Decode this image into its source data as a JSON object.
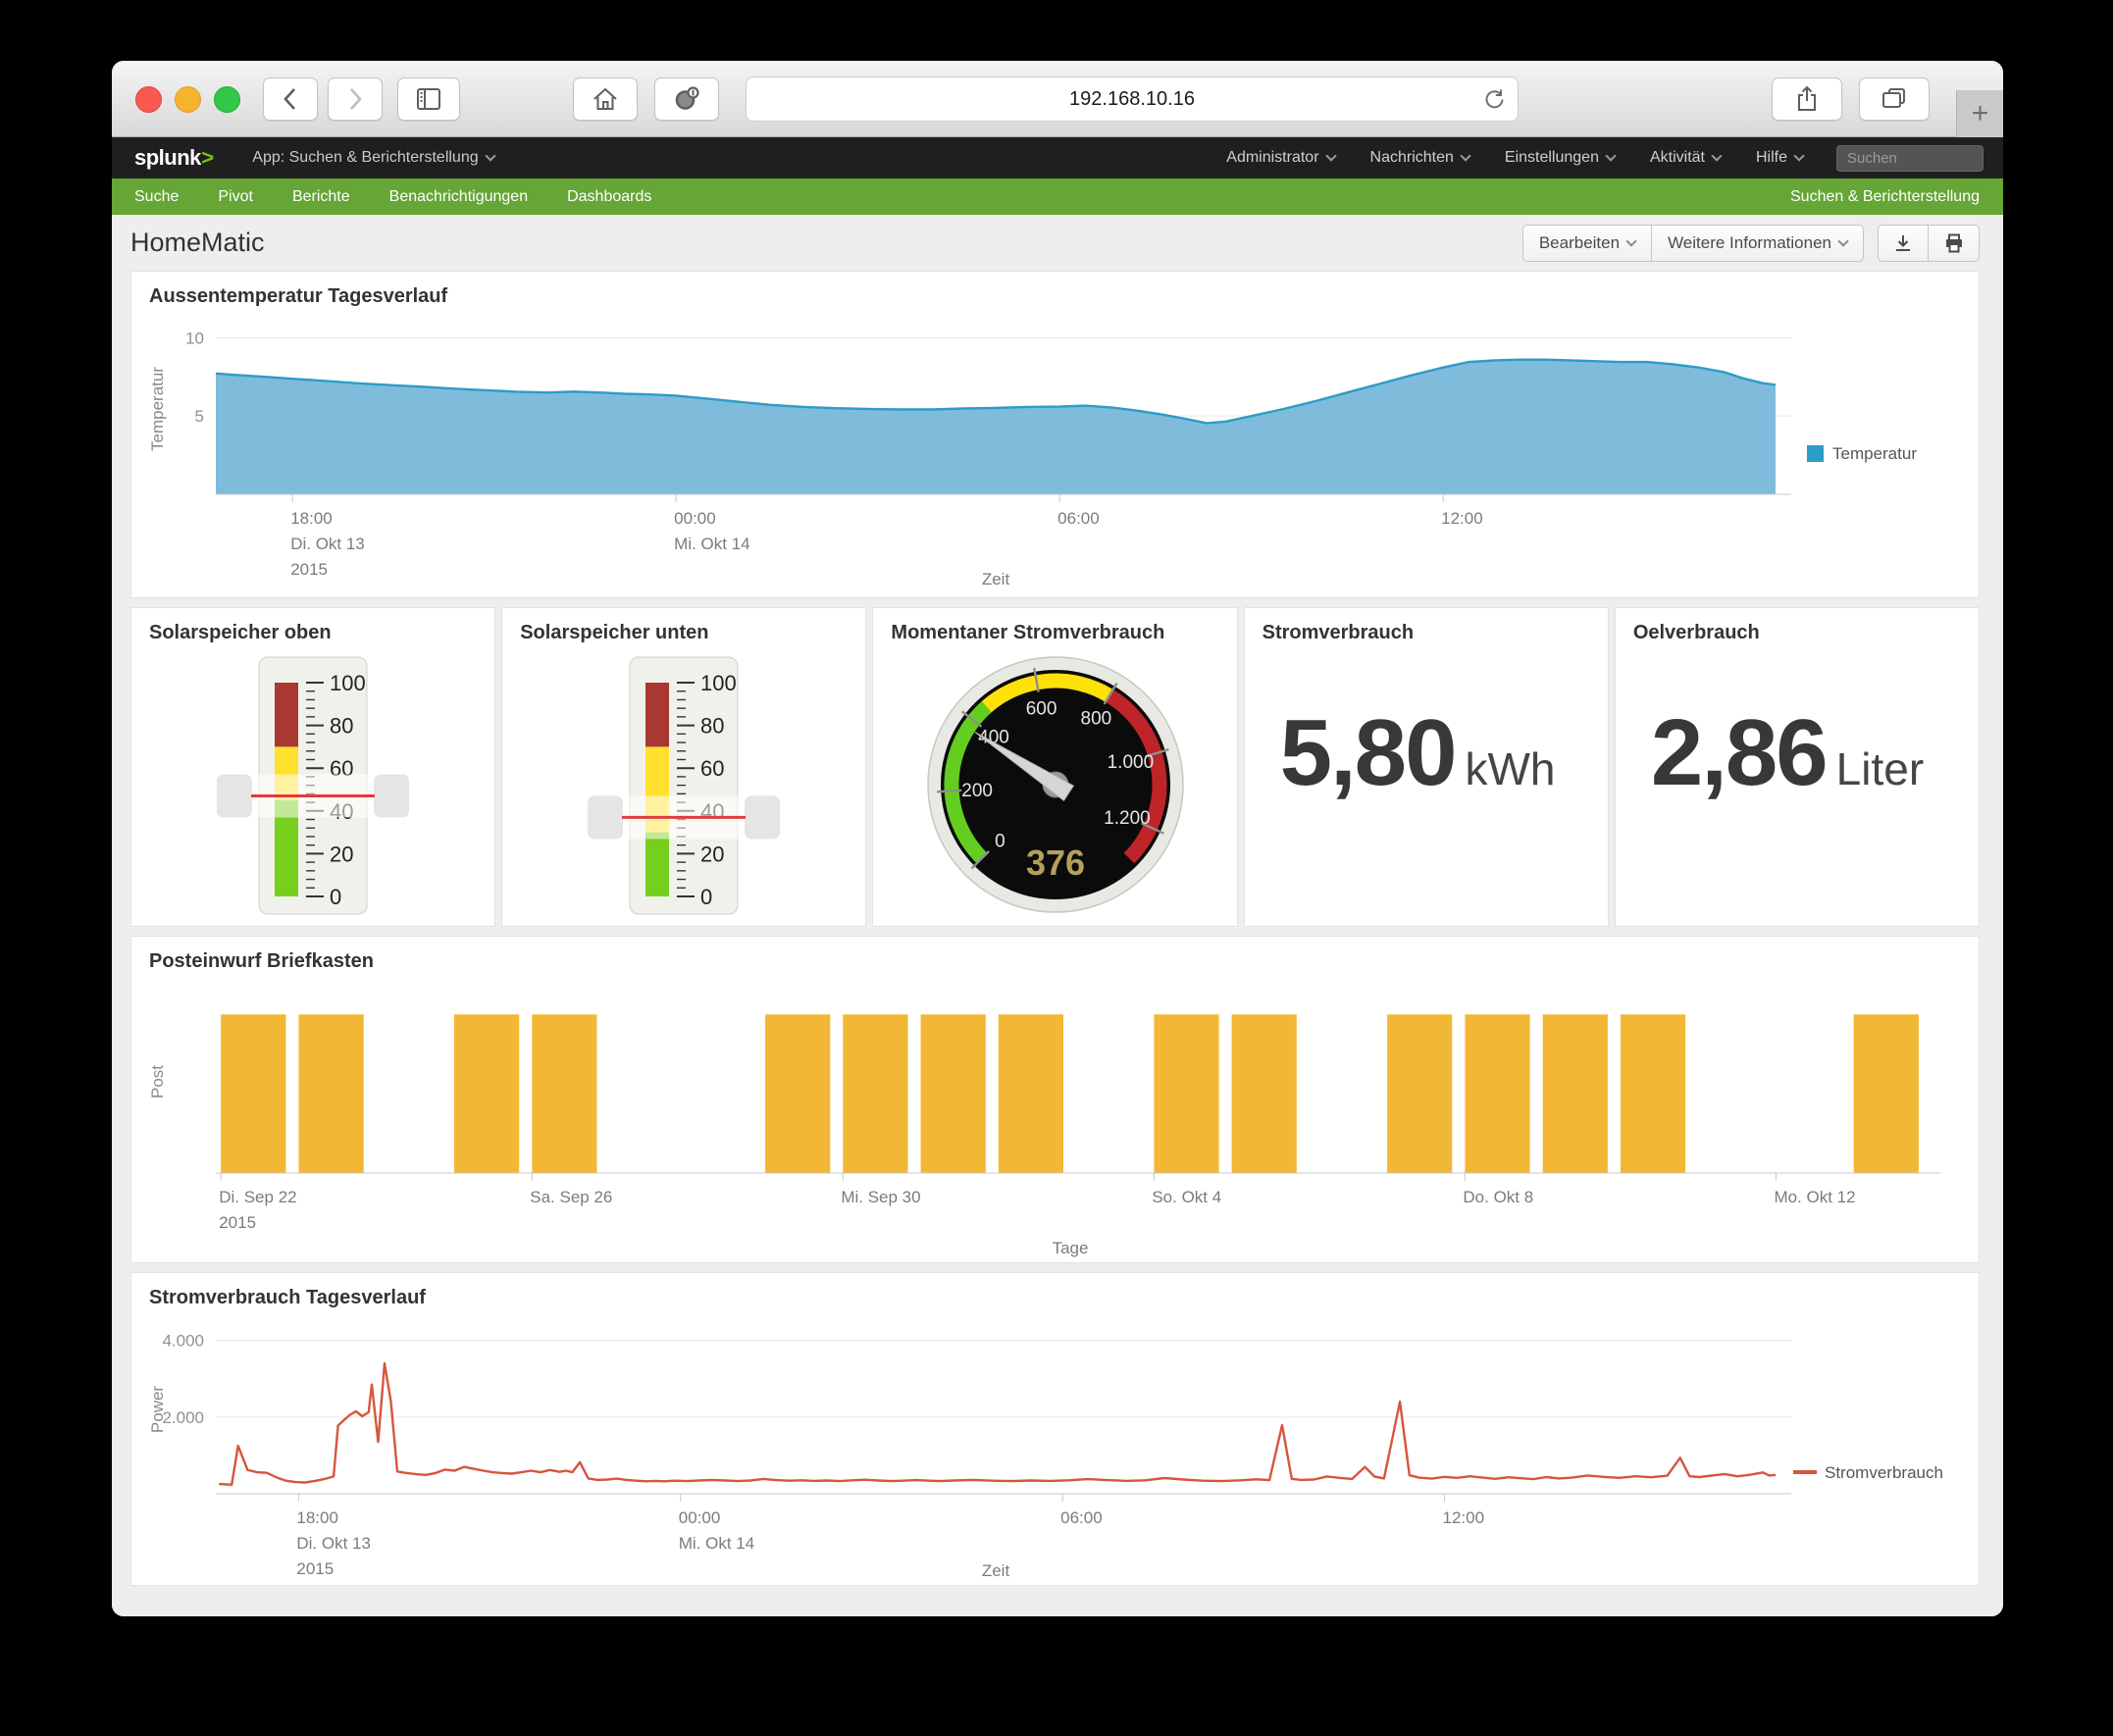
{
  "browser": {
    "url": "192.168.10.16",
    "new_tab": "+"
  },
  "splunk_bar": {
    "logo_text": "splunk",
    "logo_caret": ">",
    "app_menu_label": "App: Suchen & Berichterstellung",
    "menus": [
      "Administrator",
      "Nachrichten",
      "Einstellungen",
      "Aktivität",
      "Hilfe"
    ],
    "search_placeholder": "Suchen"
  },
  "nav_bar": {
    "items": [
      "Suche",
      "Pivot",
      "Berichte",
      "Benachrichtigungen",
      "Dashboards"
    ],
    "app_label": "Suchen & Berichterstellung"
  },
  "page": {
    "title": "HomeMatic",
    "edit_label": "Bearbeiten",
    "more_info_label": "Weitere Informationen"
  },
  "chart_data": [
    {
      "id": "temp_area",
      "type": "area",
      "title": "Aussentemperatur Tagesverlauf",
      "xlabel": "Zeit",
      "ylabel": "Temperatur",
      "color": "#2d9cc6",
      "fill": "#7fbcdc",
      "ylim": [
        0,
        10.9
      ],
      "yticks": [
        {
          "v": 5,
          "label": "5"
        },
        {
          "v": 10,
          "label": "10"
        }
      ],
      "x_range_hours": [
        16.8,
        41.2
      ],
      "xticks": [
        {
          "h": 18,
          "lines": [
            "18:00",
            "Di. Okt 13",
            "2015"
          ]
        },
        {
          "h": 24,
          "lines": [
            "00:00",
            "Mi. Okt 14"
          ]
        },
        {
          "h": 30,
          "lines": [
            "06:00"
          ]
        },
        {
          "h": 36,
          "lines": [
            "12:00"
          ]
        }
      ],
      "legend": [
        {
          "label": "Temperatur",
          "color": "#2d9cc6"
        }
      ],
      "points": [
        [
          16.8,
          7.72
        ],
        [
          17.2,
          7.6
        ],
        [
          17.6,
          7.5
        ],
        [
          18,
          7.38
        ],
        [
          18.5,
          7.25
        ],
        [
          19,
          7.1
        ],
        [
          19.5,
          6.98
        ],
        [
          20,
          6.88
        ],
        [
          20.5,
          6.75
        ],
        [
          21,
          6.65
        ],
        [
          21.5,
          6.55
        ],
        [
          22,
          6.5
        ],
        [
          22.4,
          6.56
        ],
        [
          22.8,
          6.5
        ],
        [
          23.2,
          6.42
        ],
        [
          23.6,
          6.38
        ],
        [
          24,
          6.3
        ],
        [
          24.5,
          6.1
        ],
        [
          25,
          5.9
        ],
        [
          25.5,
          5.7
        ],
        [
          26,
          5.58
        ],
        [
          26.5,
          5.5
        ],
        [
          27,
          5.45
        ],
        [
          27.5,
          5.42
        ],
        [
          28,
          5.42
        ],
        [
          28.5,
          5.48
        ],
        [
          29,
          5.52
        ],
        [
          29.5,
          5.58
        ],
        [
          30,
          5.6
        ],
        [
          30.4,
          5.66
        ],
        [
          30.8,
          5.55
        ],
        [
          31.2,
          5.35
        ],
        [
          31.6,
          5.1
        ],
        [
          32,
          4.8
        ],
        [
          32.3,
          4.55
        ],
        [
          32.6,
          4.65
        ],
        [
          33,
          5.0
        ],
        [
          33.5,
          5.45
        ],
        [
          34,
          5.95
        ],
        [
          34.5,
          6.5
        ],
        [
          35,
          7.05
        ],
        [
          35.5,
          7.6
        ],
        [
          36,
          8.1
        ],
        [
          36.4,
          8.45
        ],
        [
          36.8,
          8.55
        ],
        [
          37.2,
          8.6
        ],
        [
          37.6,
          8.6
        ],
        [
          38,
          8.55
        ],
        [
          38.4,
          8.5
        ],
        [
          38.8,
          8.45
        ],
        [
          39.2,
          8.45
        ],
        [
          39.6,
          8.3
        ],
        [
          40,
          8.1
        ],
        [
          40.4,
          7.8
        ],
        [
          40.7,
          7.4
        ],
        [
          41,
          7.1
        ],
        [
          41.2,
          7.0
        ]
      ]
    },
    {
      "id": "gauge_oben",
      "type": "filler_gauge",
      "title": "Solarspeicher oben",
      "min": 0,
      "max": 100,
      "value": 47,
      "major_tick_step": 20,
      "minor_tick_step": 4,
      "ranges": [
        {
          "from": 0,
          "to": 45,
          "color": "#76cf1c"
        },
        {
          "from": 45,
          "to": 70,
          "color": "#ffe12e"
        },
        {
          "from": 70,
          "to": 100,
          "color": "#a93732"
        }
      ],
      "marker_color": "#e23b40"
    },
    {
      "id": "gauge_unten",
      "type": "filler_gauge",
      "title": "Solarspeicher unten",
      "min": 0,
      "max": 100,
      "value": 37,
      "major_tick_step": 20,
      "minor_tick_step": 4,
      "ranges": [
        {
          "from": 0,
          "to": 30,
          "color": "#76cf1c"
        },
        {
          "from": 30,
          "to": 70,
          "color": "#ffe12e"
        },
        {
          "from": 70,
          "to": 100,
          "color": "#a93732"
        }
      ],
      "marker_color": "#e23b40"
    },
    {
      "id": "gauge_radial",
      "type": "radial_gauge",
      "title": "Momentaner Stromverbrauch",
      "min": 0,
      "max": 1300,
      "value": 376,
      "value_label": "376",
      "value_color": "#b3a05c",
      "ranges": [
        {
          "from": 0,
          "to": 450,
          "color": "#63ce20"
        },
        {
          "from": 450,
          "to": 800,
          "color": "#ffe10a"
        },
        {
          "from": 800,
          "to": 1300,
          "color": "#bf2428"
        }
      ],
      "ticks": [
        {
          "v": 0,
          "label": "0"
        },
        {
          "v": 200,
          "label": "200"
        },
        {
          "v": 400,
          "label": "400"
        },
        {
          "v": 600,
          "label": "600"
        },
        {
          "v": 800,
          "label": "800"
        },
        {
          "v": 1000,
          "label": "1.000"
        },
        {
          "v": 1200,
          "label": "1.200"
        }
      ]
    },
    {
      "id": "single_strom",
      "type": "single_value",
      "title": "Stromverbrauch",
      "value": "5,80",
      "unit": "kWh"
    },
    {
      "id": "single_oel",
      "type": "single_value",
      "title": "Oelverbrauch",
      "value": "2,86",
      "unit": "Liter"
    },
    {
      "id": "post_bars",
      "type": "bar",
      "title": "Posteinwurf Briefkasten",
      "xlabel": "Tage",
      "ylabel": "Post",
      "color": "#f2b835",
      "ylim": [
        0,
        1.15
      ],
      "bar_value": 1,
      "day0_frac": 0.003,
      "day_step_frac": 0.0455,
      "bar_width_frac": 0.038,
      "bars": [
        {
          "date": "Di. Sep 22",
          "day": 0,
          "value": 1
        },
        {
          "date": "Mi. Sep 23",
          "day": 1,
          "value": 1
        },
        {
          "date": "Fr. Sep 25",
          "day": 3,
          "value": 1
        },
        {
          "date": "Sa. Sep 26",
          "day": 4,
          "value": 1
        },
        {
          "date": "Di. Sep 29",
          "day": 7,
          "value": 1
        },
        {
          "date": "Mi. Sep 30",
          "day": 8,
          "value": 1
        },
        {
          "date": "Do. Okt 1",
          "day": 9,
          "value": 1
        },
        {
          "date": "Fr. Okt 2",
          "day": 10,
          "value": 1
        },
        {
          "date": "So. Okt 4",
          "day": 12,
          "value": 1
        },
        {
          "date": "Mo. Okt 5",
          "day": 13,
          "value": 1
        },
        {
          "date": "Mi. Okt 7",
          "day": 15,
          "value": 1
        },
        {
          "date": "Do. Okt 8",
          "day": 16,
          "value": 1
        },
        {
          "date": "Fr. Okt 9",
          "day": 17,
          "value": 1
        },
        {
          "date": "Sa. Okt 10",
          "day": 18,
          "value": 1
        },
        {
          "date": "Di. Okt 13",
          "day": 21,
          "value": 1
        }
      ],
      "xticks": [
        {
          "day": 0,
          "lines": [
            "Di. Sep 22",
            "2015"
          ]
        },
        {
          "day": 4,
          "lines": [
            "Sa. Sep 26"
          ]
        },
        {
          "day": 8,
          "lines": [
            "Mi. Sep 30"
          ]
        },
        {
          "day": 12,
          "lines": [
            "So. Okt 4"
          ]
        },
        {
          "day": 16,
          "lines": [
            "Do. Okt 8"
          ]
        },
        {
          "day": 20,
          "lines": [
            "Mo. Okt 12"
          ]
        }
      ]
    },
    {
      "id": "power_line",
      "type": "line",
      "title": "Stromverbrauch Tagesverlauf",
      "xlabel": "Zeit",
      "ylabel": "Power",
      "color": "#d6563c",
      "ylim": [
        0,
        4400
      ],
      "yticks": [
        {
          "v": 2000,
          "label": "2.000"
        },
        {
          "v": 4000,
          "label": "4.000"
        }
      ],
      "x_range_hours": [
        16.7,
        41.2
      ],
      "xticks": [
        {
          "h": 18,
          "lines": [
            "18:00",
            "Di. Okt 13",
            "2015"
          ]
        },
        {
          "h": 24,
          "lines": [
            "00:00",
            "Mi. Okt 14"
          ]
        },
        {
          "h": 30,
          "lines": [
            "06:00"
          ]
        },
        {
          "h": 36,
          "lines": [
            "12:00"
          ]
        }
      ],
      "legend": [
        {
          "label": "Stromverbrauch",
          "color": "#d6563c"
        }
      ],
      "points": [
        [
          16.75,
          255
        ],
        [
          16.95,
          235
        ],
        [
          17.05,
          1250
        ],
        [
          17.2,
          620
        ],
        [
          17.35,
          560
        ],
        [
          17.5,
          545
        ],
        [
          17.65,
          430
        ],
        [
          17.8,
          340
        ],
        [
          17.95,
          305
        ],
        [
          18.1,
          295
        ],
        [
          18.25,
          330
        ],
        [
          18.4,
          380
        ],
        [
          18.55,
          450
        ],
        [
          18.62,
          1780
        ],
        [
          18.7,
          1900
        ],
        [
          18.8,
          2050
        ],
        [
          18.9,
          2150
        ],
        [
          19.0,
          2020
        ],
        [
          19.1,
          2130
        ],
        [
          19.15,
          2850
        ],
        [
          19.25,
          1350
        ],
        [
          19.35,
          3400
        ],
        [
          19.45,
          2400
        ],
        [
          19.55,
          580
        ],
        [
          19.7,
          540
        ],
        [
          19.85,
          510
        ],
        [
          20.0,
          490
        ],
        [
          20.15,
          540
        ],
        [
          20.3,
          630
        ],
        [
          20.45,
          600
        ],
        [
          20.6,
          700
        ],
        [
          20.75,
          650
        ],
        [
          20.9,
          600
        ],
        [
          21.05,
          560
        ],
        [
          21.2,
          540
        ],
        [
          21.35,
          525
        ],
        [
          21.5,
          560
        ],
        [
          21.65,
          600
        ],
        [
          21.8,
          560
        ],
        [
          21.95,
          620
        ],
        [
          22.1,
          570
        ],
        [
          22.2,
          600
        ],
        [
          22.3,
          560
        ],
        [
          22.42,
          820
        ],
        [
          22.55,
          400
        ],
        [
          22.7,
          360
        ],
        [
          22.85,
          370
        ],
        [
          23.0,
          395
        ],
        [
          23.15,
          360
        ],
        [
          23.3,
          340
        ],
        [
          23.45,
          325
        ],
        [
          23.6,
          335
        ],
        [
          23.75,
          325
        ],
        [
          23.9,
          340
        ],
        [
          24.1,
          330
        ],
        [
          24.3,
          345
        ],
        [
          24.5,
          360
        ],
        [
          24.7,
          345
        ],
        [
          24.9,
          330
        ],
        [
          25.1,
          345
        ],
        [
          25.3,
          385
        ],
        [
          25.5,
          355
        ],
        [
          25.7,
          340
        ],
        [
          25.9,
          350
        ],
        [
          26.1,
          335
        ],
        [
          26.3,
          345
        ],
        [
          26.5,
          330
        ],
        [
          26.7,
          350
        ],
        [
          26.9,
          365
        ],
        [
          27.1,
          345
        ],
        [
          27.3,
          330
        ],
        [
          27.5,
          340
        ],
        [
          27.7,
          355
        ],
        [
          27.9,
          340
        ],
        [
          28.1,
          330
        ],
        [
          28.3,
          345
        ],
        [
          28.6,
          360
        ],
        [
          28.9,
          340
        ],
        [
          29.2,
          330
        ],
        [
          29.5,
          345
        ],
        [
          29.8,
          335
        ],
        [
          30.1,
          350
        ],
        [
          30.4,
          380
        ],
        [
          30.7,
          355
        ],
        [
          31.0,
          335
        ],
        [
          31.3,
          350
        ],
        [
          31.6,
          410
        ],
        [
          31.9,
          370
        ],
        [
          32.2,
          340
        ],
        [
          32.5,
          330
        ],
        [
          32.8,
          350
        ],
        [
          33.05,
          375
        ],
        [
          33.25,
          355
        ],
        [
          33.45,
          1790
        ],
        [
          33.6,
          390
        ],
        [
          33.75,
          360
        ],
        [
          33.95,
          370
        ],
        [
          34.15,
          450
        ],
        [
          34.35,
          415
        ],
        [
          34.55,
          385
        ],
        [
          34.75,
          700
        ],
        [
          34.9,
          450
        ],
        [
          35.05,
          400
        ],
        [
          35.3,
          2400
        ],
        [
          35.45,
          480
        ],
        [
          35.6,
          420
        ],
        [
          35.8,
          395
        ],
        [
          36.0,
          440
        ],
        [
          36.2,
          415
        ],
        [
          36.4,
          455
        ],
        [
          36.6,
          420
        ],
        [
          36.8,
          390
        ],
        [
          37.0,
          430
        ],
        [
          37.2,
          405
        ],
        [
          37.4,
          380
        ],
        [
          37.6,
          435
        ],
        [
          37.8,
          400
        ],
        [
          38.0,
          420
        ],
        [
          38.25,
          475
        ],
        [
          38.5,
          440
        ],
        [
          38.75,
          415
        ],
        [
          39.0,
          455
        ],
        [
          39.25,
          430
        ],
        [
          39.5,
          470
        ],
        [
          39.7,
          940
        ],
        [
          39.85,
          455
        ],
        [
          40.0,
          435
        ],
        [
          40.2,
          475
        ],
        [
          40.4,
          515
        ],
        [
          40.6,
          455
        ],
        [
          40.8,
          495
        ],
        [
          41.0,
          555
        ],
        [
          41.1,
          475
        ],
        [
          41.2,
          490
        ]
      ]
    }
  ]
}
